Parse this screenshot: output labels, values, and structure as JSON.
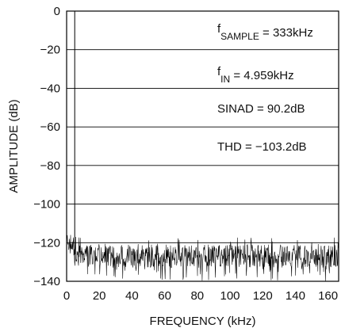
{
  "chart_data": {
    "type": "line",
    "xlabel": "FREQUENCY (kHz)",
    "ylabel": "AMPLITUDE (dB)",
    "xlim": [
      0,
      166.5
    ],
    "ylim": [
      -140,
      0
    ],
    "x_ticks": [
      0,
      20,
      40,
      60,
      80,
      100,
      120,
      140,
      160
    ],
    "y_ticks": [
      0,
      -20,
      -40,
      -60,
      -80,
      -100,
      -120,
      -140
    ],
    "grid": "horizontal",
    "annotations": [
      {
        "main": "f",
        "sub": "SAMPLE",
        "rest": " = 333kHz"
      },
      {
        "main": "f",
        "sub": "IN",
        "rest": " = 4.959kHz"
      },
      {
        "main": "SINAD = 90.2dB",
        "sub": "",
        "rest": ""
      },
      {
        "main": "THD = −103.2dB",
        "sub": "",
        "rest": ""
      }
    ],
    "series": [
      {
        "signal": {
          "x": 4.959,
          "y": 0
        },
        "noise_floor": {
          "x_start": 0,
          "x_end": 166.5,
          "mean_db": -127,
          "spread_db": 6,
          "min_db": -140,
          "near_dc_db": -120
        }
      }
    ],
    "line_color": "#000000"
  }
}
